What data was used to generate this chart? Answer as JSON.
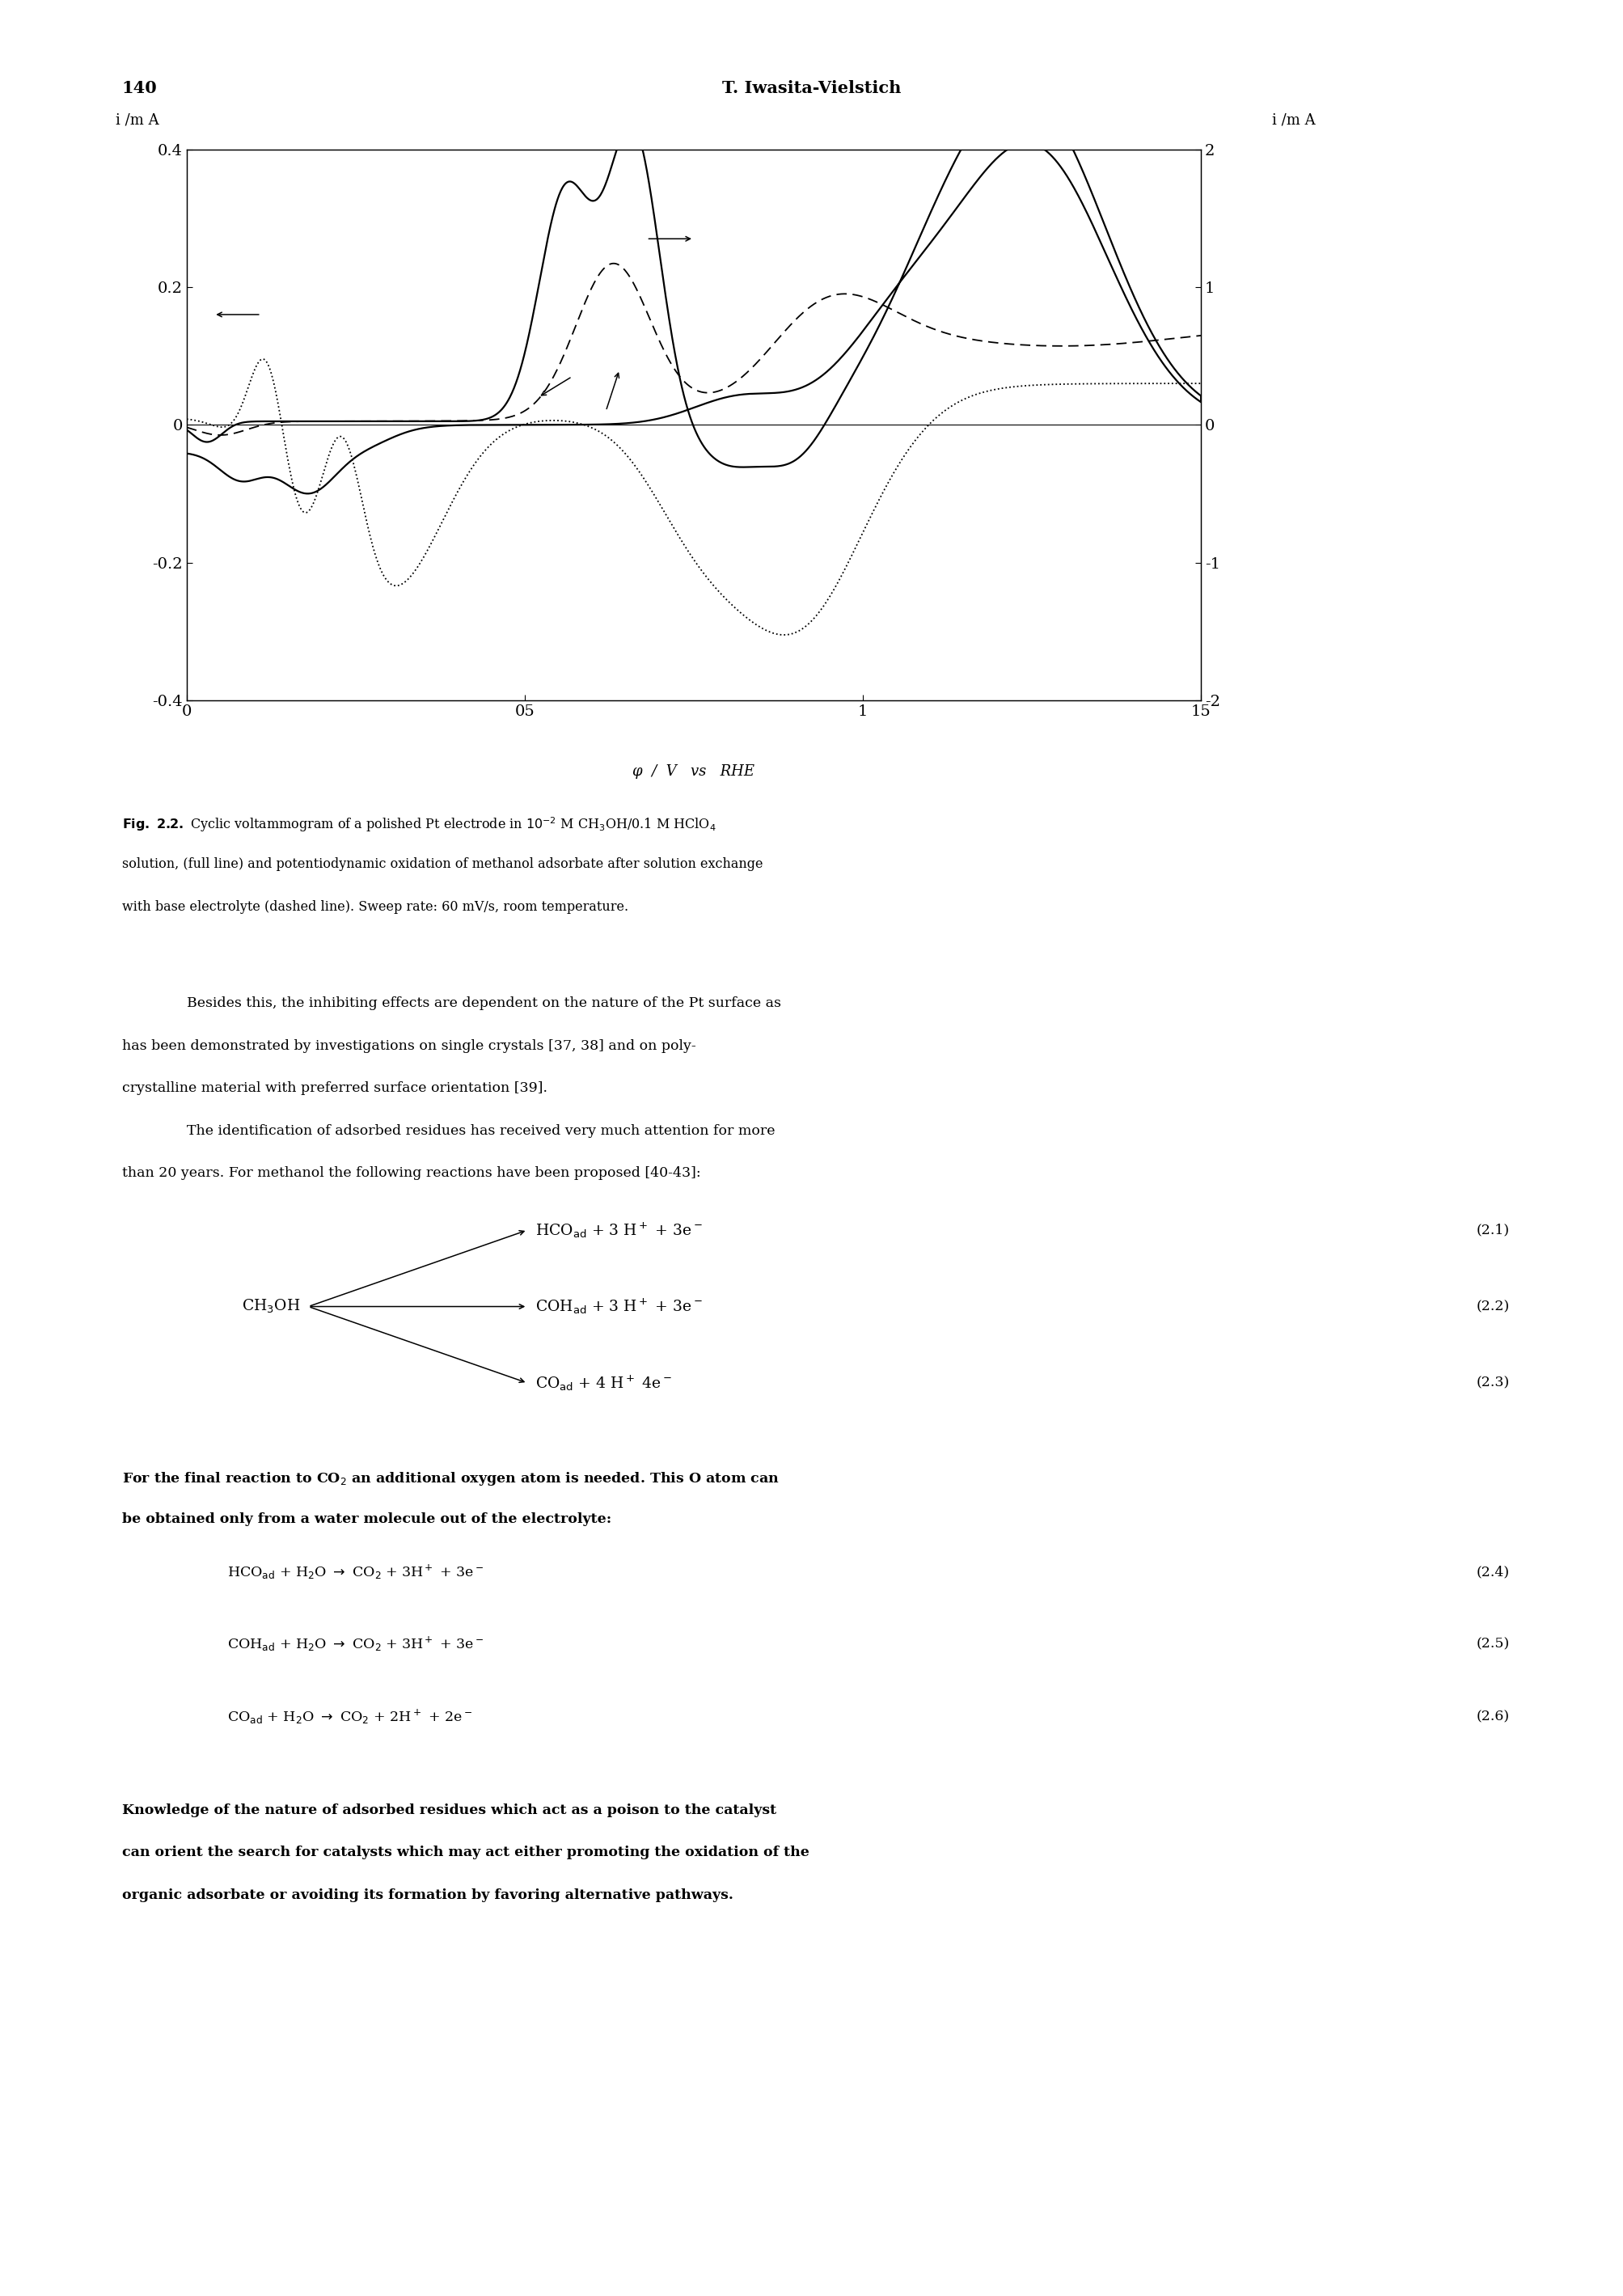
{
  "page_number": "140",
  "header": "T. Iwasita-Vielstich",
  "xlabel": "φ  /  V   vs   RHE",
  "ylabel_left": "i /m A",
  "ylabel_right": "i /m A",
  "xlim": [
    0,
    1.5
  ],
  "ylim_left": [
    -0.4,
    0.4
  ],
  "ylim_right": [
    -2,
    2
  ],
  "xticks": [
    0,
    0.5,
    1.0,
    1.5
  ],
  "xtick_labels": [
    "0",
    "05",
    "1",
    "15"
  ],
  "yticks_left": [
    -0.4,
    -0.2,
    0,
    0.2,
    0.4
  ],
  "ytick_labels_left": [
    "-0.4",
    "-0.2",
    "0",
    "0.2",
    "0.4"
  ],
  "yticks_right": [
    -2,
    -1,
    0,
    1,
    2
  ],
  "ytick_labels_right": [
    "-2",
    "-1",
    "0",
    "1",
    "2"
  ],
  "background": "#ffffff",
  "text_color": "#000000"
}
